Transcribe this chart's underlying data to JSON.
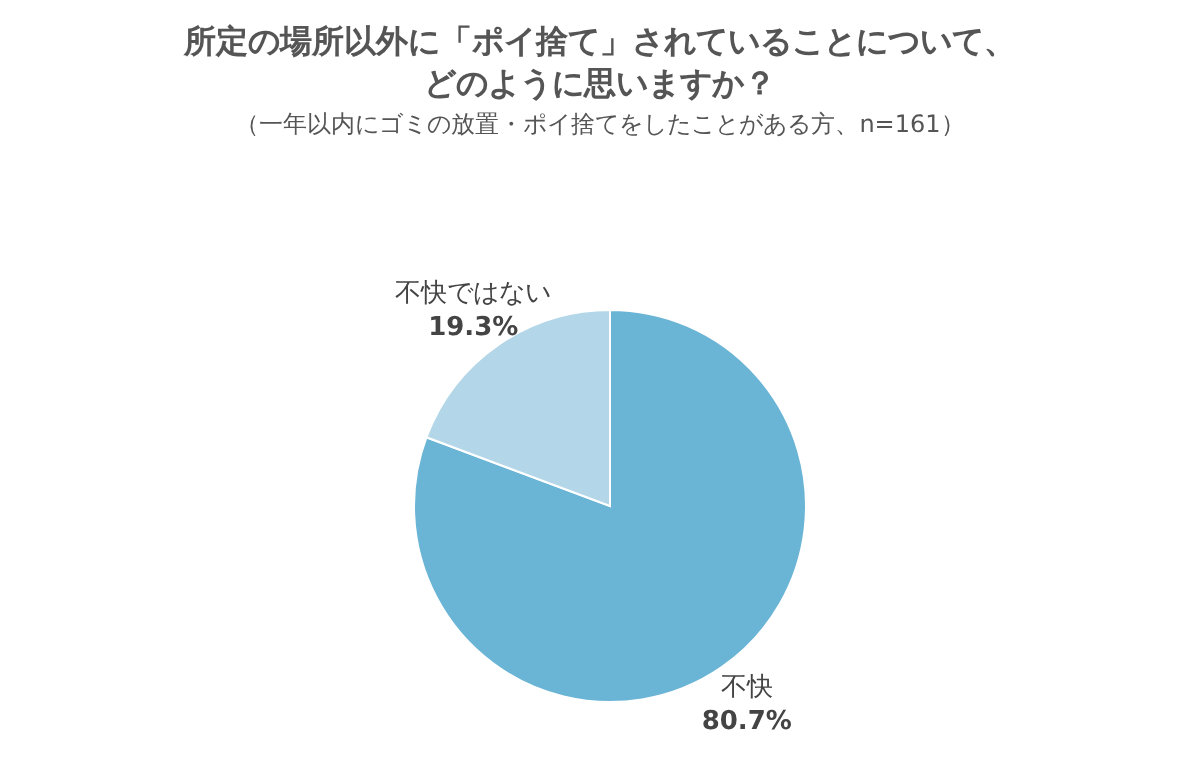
{
  "chart_data": {
    "type": "pie",
    "title": "所定の場所以外に「ポイ捨て」されていることについて、どのように思いますか？",
    "subtitle": "（一年以内にゴミの放置・ポイ捨てをしたことがある方、n=161）",
    "categories": [
      "不快",
      "不快ではない"
    ],
    "values": [
      80.7,
      19.3
    ],
    "value_labels": [
      "80.7%",
      "19.3%"
    ],
    "colors": [
      "#6ab4d6",
      "#b3d7e8"
    ]
  }
}
